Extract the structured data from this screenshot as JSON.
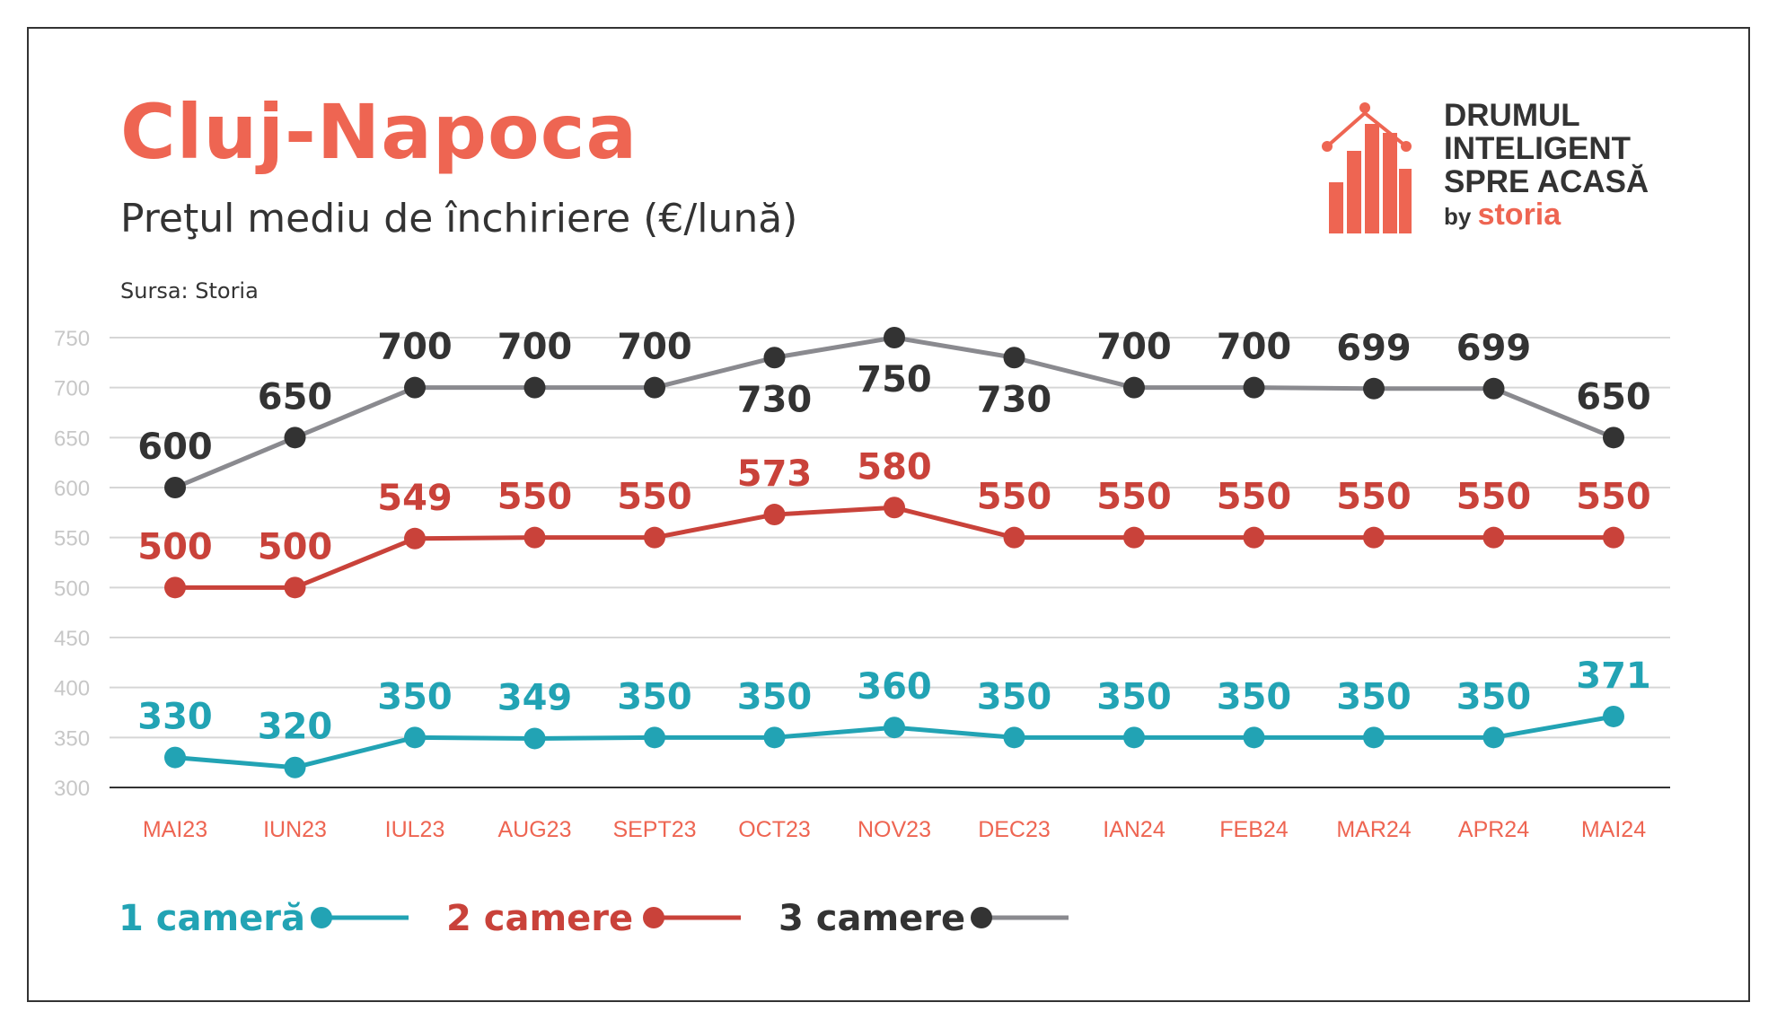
{
  "header": {
    "title": "Cluj-Napoca",
    "subtitle": "Preţul mediu de închiriere (€/lună)",
    "source": "Sursa: Storia"
  },
  "logo": {
    "line1": "DRUMUL",
    "line2": "INTELIGENT",
    "line3": "SPRE ACASĂ",
    "by": "by",
    "brand": "storia"
  },
  "colors": {
    "accent": "#ee6552",
    "one_room": "#22a3b4",
    "two_rooms": "#c9423a",
    "three_rooms": "#333333",
    "three_rooms_line": "#8a8a8f",
    "grid": "#d6d6d6",
    "axis_tick": "#c7c7c7"
  },
  "chart_data": {
    "type": "line",
    "categories": [
      "MAI23",
      "IUN23",
      "IUL23",
      "AUG23",
      "SEPT23",
      "OCT23",
      "NOV23",
      "DEC23",
      "IAN24",
      "FEB24",
      "MAR24",
      "APR24",
      "MAI24"
    ],
    "ylim": [
      300,
      750
    ],
    "yticks": [
      300,
      350,
      400,
      450,
      500,
      550,
      600,
      650,
      700,
      750
    ],
    "grid": true,
    "legend_placement": "bottom-left",
    "series": [
      {
        "name": "1 cameră",
        "values": [
          330,
          320,
          350,
          349,
          350,
          350,
          360,
          350,
          350,
          350,
          350,
          350,
          371
        ]
      },
      {
        "name": "2 camere",
        "values": [
          500,
          500,
          549,
          550,
          550,
          573,
          580,
          550,
          550,
          550,
          550,
          550,
          550
        ]
      },
      {
        "name": "3 camere",
        "values": [
          600,
          650,
          700,
          700,
          700,
          730,
          750,
          730,
          700,
          700,
          699,
          699,
          650
        ]
      }
    ]
  }
}
